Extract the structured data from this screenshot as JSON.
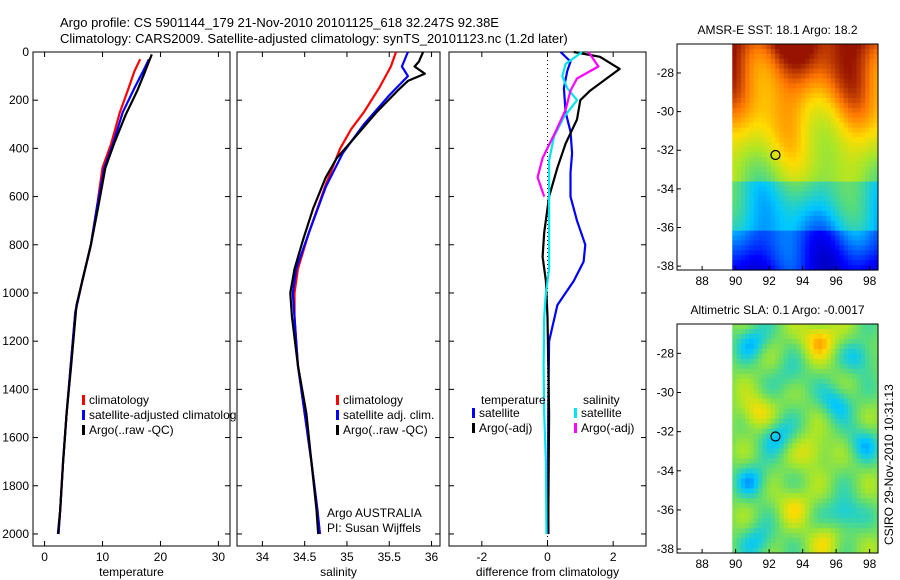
{
  "title": {
    "line1": "Argo profile: CS 5901144_179 21-Nov-2010 20101125_618 32.247S 92.38E",
    "line2": "Climatology: CARS2009. Satellite-adjusted climatology: synTS_20101123.nc (1.2d later)"
  },
  "watermark": "CSIRO 29-Nov-2010 10:31:13",
  "colors": {
    "red": "#ff0000",
    "blue": "#0000ff",
    "black": "#000000",
    "cyan": "#00e5ee",
    "magenta": "#ff00ff"
  },
  "chart_data": [
    {
      "id": "temperature",
      "type": "line",
      "xlabel": "temperature",
      "xlim": [
        -2,
        32
      ],
      "ylim": [
        0,
        2050
      ],
      "xticks": [
        "0",
        "10",
        "20",
        "30"
      ],
      "yticks": [
        "0",
        "200",
        "400",
        "600",
        "800",
        "1000",
        "1200",
        "1400",
        "1600",
        "1800",
        "2000"
      ],
      "legend": [
        "climatology",
        "satellite-adjusted climatolog",
        "Argo(..raw -QC)"
      ],
      "series": [
        {
          "name": "climatology",
          "color": "#ff0000",
          "points": [
            [
              16.5,
              30
            ],
            [
              15.5,
              80
            ],
            [
              14.5,
              150
            ],
            [
              13.0,
              250
            ],
            [
              11.5,
              380
            ],
            [
              10.0,
              480
            ],
            [
              9.0,
              650
            ],
            [
              8.0,
              800
            ],
            [
              6.5,
              950
            ],
            [
              5.3,
              1080
            ],
            [
              4.5,
              1300
            ],
            [
              3.8,
              1500
            ],
            [
              3.2,
              1700
            ],
            [
              2.7,
              1900
            ],
            [
              2.4,
              2000
            ]
          ]
        },
        {
          "name": "satellite-adjusted climatology",
          "color": "#0000ff",
          "points": [
            [
              18.0,
              30
            ],
            [
              17.0,
              80
            ],
            [
              15.5,
              150
            ],
            [
              13.5,
              250
            ],
            [
              11.8,
              380
            ],
            [
              10.3,
              480
            ],
            [
              9.0,
              650
            ],
            [
              8.0,
              800
            ],
            [
              6.5,
              950
            ],
            [
              5.3,
              1080
            ],
            [
              4.5,
              1300
            ],
            [
              3.8,
              1500
            ],
            [
              3.2,
              1700
            ],
            [
              2.7,
              1900
            ],
            [
              2.4,
              2000
            ]
          ]
        },
        {
          "name": "Argo(..raw -QC)",
          "color": "#000000",
          "points": [
            [
              18.5,
              10
            ],
            [
              18.0,
              40
            ],
            [
              17.2,
              90
            ],
            [
              16.0,
              160
            ],
            [
              14.0,
              260
            ],
            [
              12.0,
              380
            ],
            [
              10.5,
              480
            ],
            [
              9.2,
              650
            ],
            [
              8.0,
              800
            ],
            [
              6.8,
              920
            ],
            [
              5.5,
              1050
            ],
            [
              4.6,
              1300
            ],
            [
              3.8,
              1500
            ],
            [
              3.2,
              1700
            ],
            [
              2.7,
              1900
            ],
            [
              2.3,
              2000
            ]
          ]
        }
      ]
    },
    {
      "id": "salinity",
      "type": "line",
      "xlabel": "salinity",
      "xlim": [
        33.7,
        36.1
      ],
      "ylim": [
        0,
        2050
      ],
      "xticks": [
        "34",
        "34.5",
        "35",
        "35.5",
        "36"
      ],
      "legend": [
        "climatology",
        "satellite adj. clim.",
        "Argo(..raw -QC)"
      ],
      "annotation": [
        "Argo AUSTRALIA",
        "PI: Susan Wijffels"
      ],
      "series": [
        {
          "name": "climatology",
          "color": "#ff0000",
          "points": [
            [
              35.58,
              0
            ],
            [
              35.52,
              60
            ],
            [
              35.38,
              150
            ],
            [
              35.2,
              250
            ],
            [
              35.05,
              320
            ],
            [
              34.92,
              400
            ],
            [
              34.75,
              550
            ],
            [
              34.55,
              750
            ],
            [
              34.42,
              900
            ],
            [
              34.38,
              1000
            ],
            [
              34.38,
              1100
            ],
            [
              34.42,
              1300
            ],
            [
              34.5,
              1500
            ],
            [
              34.58,
              1700
            ],
            [
              34.65,
              1900
            ],
            [
              34.68,
              2000
            ]
          ]
        },
        {
          "name": "satellite adj. clim.",
          "color": "#0000ff",
          "points": [
            [
              35.72,
              0
            ],
            [
              35.65,
              60
            ],
            [
              35.72,
              100
            ],
            [
              35.5,
              180
            ],
            [
              35.2,
              300
            ],
            [
              34.95,
              420
            ],
            [
              34.75,
              560
            ],
            [
              34.55,
              750
            ],
            [
              34.4,
              900
            ],
            [
              34.36,
              1000
            ],
            [
              34.38,
              1100
            ],
            [
              34.42,
              1300
            ],
            [
              34.5,
              1500
            ],
            [
              34.58,
              1700
            ],
            [
              34.65,
              1900
            ],
            [
              34.68,
              2000
            ]
          ]
        },
        {
          "name": "Argo(..raw -QC)",
          "color": "#000000",
          "points": [
            [
              35.9,
              0
            ],
            [
              35.85,
              40
            ],
            [
              35.8,
              60
            ],
            [
              35.92,
              90
            ],
            [
              35.72,
              120
            ],
            [
              35.6,
              160
            ],
            [
              35.35,
              250
            ],
            [
              35.08,
              360
            ],
            [
              34.88,
              440
            ],
            [
              34.75,
              520
            ],
            [
              34.6,
              650
            ],
            [
              34.48,
              780
            ],
            [
              34.38,
              900
            ],
            [
              34.33,
              1000
            ],
            [
              34.35,
              1100
            ],
            [
              34.42,
              1300
            ],
            [
              34.52,
              1500
            ],
            [
              34.58,
              1700
            ],
            [
              34.64,
              1900
            ],
            [
              34.66,
              2000
            ]
          ]
        }
      ]
    },
    {
      "id": "difference",
      "type": "line",
      "xlabel": "difference from climatology",
      "xlim": [
        -3,
        3
      ],
      "ylim": [
        0,
        2050
      ],
      "xticks": [
        "-2",
        "0",
        "2"
      ],
      "legend": {
        "temperature_header": "temperature",
        "salinity_header": "salinity",
        "temperature_items": [
          "satellite",
          "Argo(-adj)"
        ],
        "salinity_items": [
          "satellite",
          "Argo(-adj)"
        ]
      },
      "series": [
        {
          "name": "temp satellite",
          "color": "#0000ff",
          "points": [
            [
              0.4,
              0
            ],
            [
              0.7,
              40
            ],
            [
              0.6,
              80
            ],
            [
              0.5,
              150
            ],
            [
              0.55,
              250
            ],
            [
              0.7,
              330
            ],
            [
              0.75,
              420
            ],
            [
              0.7,
              500
            ],
            [
              0.7,
              600
            ],
            [
              0.9,
              700
            ],
            [
              1.15,
              800
            ],
            [
              1.1,
              870
            ],
            [
              0.8,
              950
            ],
            [
              0.3,
              1050
            ],
            [
              0.05,
              1200
            ],
            [
              0.02,
              1500
            ],
            [
              0.02,
              1800
            ],
            [
              0.03,
              2000
            ]
          ]
        },
        {
          "name": "temp Argo(-adj)",
          "color": "#000000",
          "points": [
            [
              0.8,
              0
            ],
            [
              1.6,
              20
            ],
            [
              2.2,
              70
            ],
            [
              1.8,
              110
            ],
            [
              1.3,
              160
            ],
            [
              1.0,
              200
            ],
            [
              0.9,
              280
            ],
            [
              0.55,
              380
            ],
            [
              0.3,
              480
            ],
            [
              0.05,
              600
            ],
            [
              -0.1,
              750
            ],
            [
              -0.15,
              850
            ],
            [
              -0.05,
              950
            ],
            [
              0.0,
              1100
            ],
            [
              0.05,
              1500
            ],
            [
              0.02,
              2000
            ]
          ]
        },
        {
          "name": "sal satellite",
          "color": "#00e5ee",
          "points": [
            [
              1.05,
              0
            ],
            [
              0.55,
              50
            ],
            [
              0.45,
              100
            ],
            [
              0.6,
              150
            ],
            [
              0.9,
              200
            ],
            [
              0.5,
              270
            ],
            [
              0.2,
              350
            ],
            [
              0.05,
              450
            ],
            [
              0.05,
              650
            ],
            [
              0.05,
              900
            ],
            [
              -0.05,
              1000
            ],
            [
              -0.1,
              1100
            ],
            [
              -0.12,
              1300
            ],
            [
              -0.1,
              1500
            ],
            [
              -0.05,
              1700
            ],
            [
              -0.03,
              2000
            ]
          ]
        },
        {
          "name": "sal Argo(-adj)",
          "color": "#ff00ff",
          "points": [
            [
              1.25,
              0
            ],
            [
              1.55,
              60
            ],
            [
              0.9,
              110
            ],
            [
              0.7,
              160
            ],
            [
              0.55,
              240
            ],
            [
              0.25,
              330
            ],
            [
              -0.15,
              440
            ],
            [
              -0.3,
              520
            ],
            [
              -0.1,
              600
            ]
          ]
        }
      ]
    },
    {
      "id": "sst-map",
      "type": "heatmap",
      "title": "AMSR-E SST: 18.1 Argo: 18.2",
      "xticks": [
        "88",
        "90",
        "92",
        "94",
        "96",
        "98"
      ],
      "yticks": [
        "-28",
        "-30",
        "-32",
        "-34",
        "-36",
        "-38"
      ],
      "xlim": [
        86.5,
        98.5
      ],
      "ylim": [
        -38.2,
        -26.5
      ],
      "marker": [
        92.38,
        -32.247
      ]
    },
    {
      "id": "sla-map",
      "type": "heatmap",
      "title": "Altimetric SLA: 0.1 Argo: -0.0017",
      "xticks": [
        "88",
        "90",
        "92",
        "94",
        "96",
        "98"
      ],
      "yticks": [
        "-28",
        "-30",
        "-32",
        "-34",
        "-36",
        "-38"
      ],
      "xlim": [
        86.5,
        98.5
      ],
      "ylim": [
        -38.2,
        -26.5
      ],
      "marker": [
        92.38,
        -32.247
      ]
    }
  ]
}
